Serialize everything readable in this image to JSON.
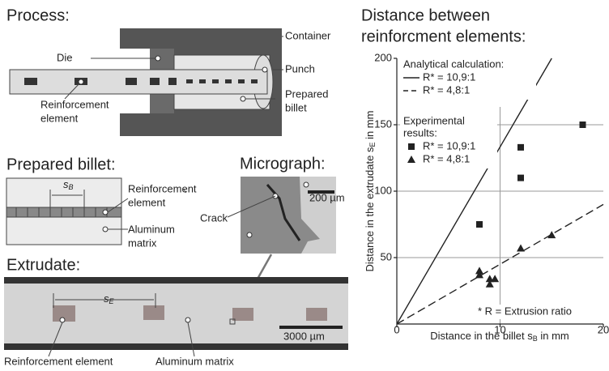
{
  "diagram": {
    "process": {
      "title": "Process:",
      "container": "Container",
      "die": "Die",
      "punch": "Punch",
      "billet": [
        "Prepared",
        "billet"
      ],
      "element": [
        "Reinforcement",
        "element"
      ]
    },
    "prepared_billet": {
      "title": "Prepared billet:",
      "spacing": "s",
      "spacing_sub": "B",
      "element": [
        "Reinforcement",
        "element"
      ],
      "matrix": [
        "Aluminum",
        "matrix"
      ]
    },
    "micrograph": {
      "title": "Micrograph:",
      "scale": "200 µm",
      "crack": "Crack"
    },
    "extrudate": {
      "title": "Extrudate:",
      "spacing": "s",
      "spacing_sub": "E",
      "scale": "3000 µm",
      "element": "Reinforcement element",
      "matrix": "Aluminum matrix"
    }
  },
  "chart_data": {
    "type": "scatter",
    "title": [
      "Distance between",
      "reinforcment elements:"
    ],
    "x_label": "Distance in the billet s",
    "x_label_sub": "B",
    "x_label_end": " in mm",
    "y_label": "Distance in the extrudate s",
    "y_label_sub": "E",
    "y_label_end": " in mm",
    "xlim": [
      0,
      20
    ],
    "ylim": [
      0,
      200
    ],
    "xticks": [
      0,
      10,
      20
    ],
    "yticks": [
      50,
      100,
      150,
      200
    ],
    "grid": true,
    "legend_groups": [
      {
        "title": [
          "Analytical calculation:"
        ],
        "series": [
          0,
          1
        ]
      },
      {
        "title": [
          "Experimental",
          "results:"
        ],
        "series": [
          2,
          3
        ]
      }
    ],
    "note": "* R = Extrusion ratio",
    "series": [
      {
        "name": "R* = 10,9:1",
        "kind": "line",
        "dash": false,
        "color": "#222",
        "x": [
          0,
          15
        ],
        "values": [
          0,
          200
        ]
      },
      {
        "name": "R* = 4,8:1",
        "kind": "line",
        "dash": true,
        "color": "#222",
        "x": [
          0,
          20
        ],
        "values": [
          0,
          90
        ]
      },
      {
        "name": "R* = 10,9:1",
        "kind": "marker",
        "marker": "square",
        "color": "#222",
        "x": [
          8,
          12,
          12,
          18
        ],
        "values": [
          75,
          133,
          110,
          150
        ]
      },
      {
        "name": "R* = 4,8:1",
        "kind": "marker",
        "marker": "triangle",
        "color": "#222",
        "x": [
          8,
          8,
          9,
          9,
          9.5,
          12,
          15
        ],
        "values": [
          40,
          37,
          30,
          34,
          34,
          57,
          67
        ]
      }
    ]
  }
}
